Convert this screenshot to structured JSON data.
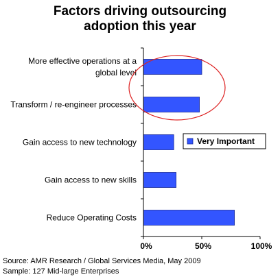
{
  "chart_data": {
    "type": "bar",
    "orientation": "horizontal",
    "title": [
      "Factors driving outsourcing",
      "adoption this year"
    ],
    "categories": [
      [
        "More effective operations at a",
        "global level"
      ],
      [
        "Transform / re-engineer processes"
      ],
      [
        "Gain access to new technology"
      ],
      [
        "Gain access to new skills"
      ],
      [
        "Reduce Operating Costs"
      ]
    ],
    "series": [
      {
        "name": "Very Important",
        "values": [
          50,
          48,
          26,
          28,
          78
        ],
        "color": "#3355ff"
      }
    ],
    "xlim": [
      0,
      100
    ],
    "xticks": [
      "0%",
      "50%",
      "100%"
    ],
    "legend_position": "right",
    "grid": false,
    "annotation": "red ellipse highlighting first two categories"
  },
  "source": "Source:  AMR Research / Global Services Media, May 2009",
  "sample": "Sample:  127 Mid-large Enterprises"
}
